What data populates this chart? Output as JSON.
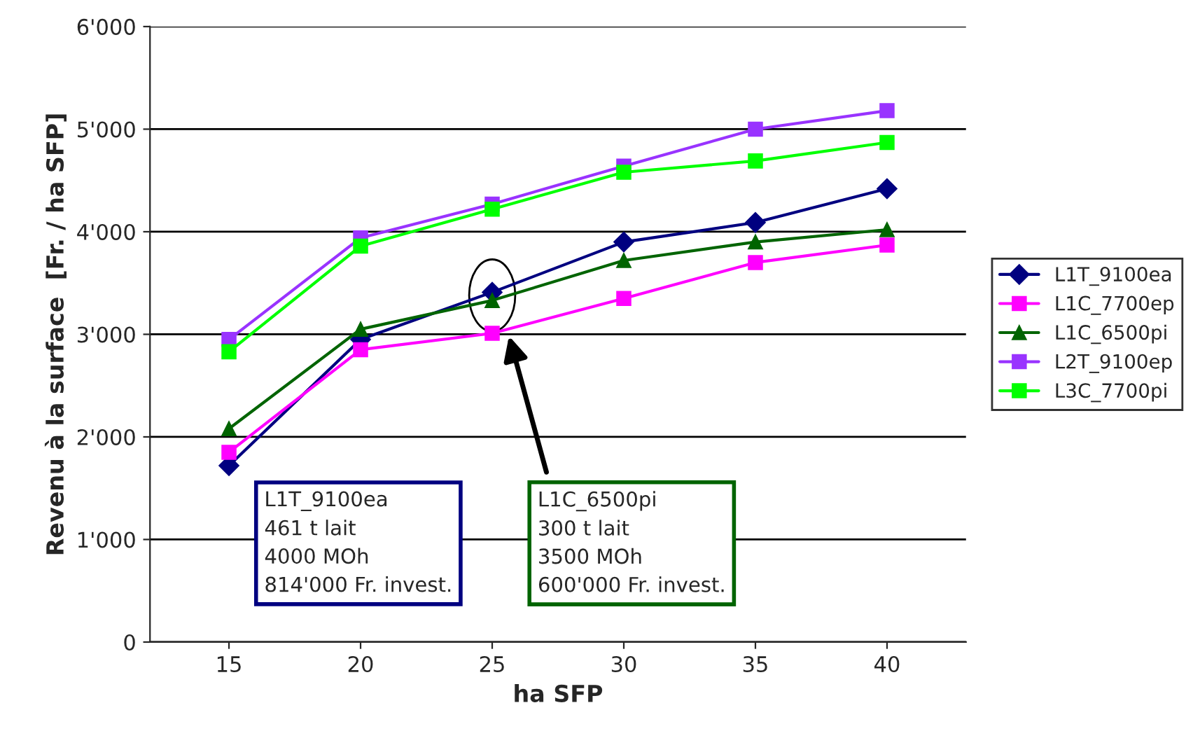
{
  "chart_data": {
    "type": "line",
    "xlabel": "ha SFP",
    "ylabel": "Revenu à la surface  [Fr. / ha SFP]",
    "categories": [
      "15",
      "20",
      "25",
      "30",
      "35",
      "40"
    ],
    "series": [
      {
        "name": "L1T_9100ea",
        "color": "#000080",
        "marker": "diamond",
        "values": [
          1720,
          2950,
          3410,
          3900,
          4090,
          4420
        ]
      },
      {
        "name": "L1C_7700ep",
        "color": "#ff00ff",
        "marker": "square",
        "values": [
          1850,
          2850,
          3010,
          3350,
          3700,
          3870
        ]
      },
      {
        "name": "L1C_6500pi",
        "color": "#006400",
        "marker": "triangle",
        "values": [
          2080,
          3050,
          3330,
          3720,
          3900,
          4020
        ]
      },
      {
        "name": "L2T_9100ep",
        "color": "#9933ff",
        "marker": "square",
        "values": [
          2950,
          3940,
          4270,
          4640,
          5000,
          5180
        ]
      },
      {
        "name": "L3C_7700pi",
        "color": "#00ff00",
        "marker": "square",
        "values": [
          2830,
          3860,
          4220,
          4580,
          4690,
          4870
        ]
      }
    ],
    "ylim": [
      0,
      6000
    ],
    "yticks": [
      {
        "value": 0,
        "label": "0"
      },
      {
        "value": 1000,
        "label": "1'000"
      },
      {
        "value": 2000,
        "label": "2'000"
      },
      {
        "value": 3000,
        "label": "3'000"
      },
      {
        "value": 4000,
        "label": "4'000"
      },
      {
        "value": 5000,
        "label": "5'000"
      },
      {
        "value": 6000,
        "label": "6'000"
      }
    ],
    "grid": "y",
    "legend": "right",
    "annotations": [
      "L1T_9100ea\n461 t lait\n4000 MOh\n814'000 Fr. invest.",
      "L1C_6500pi\n300 t lait\n3500 MOh\n600'000 Fr. invest."
    ]
  }
}
